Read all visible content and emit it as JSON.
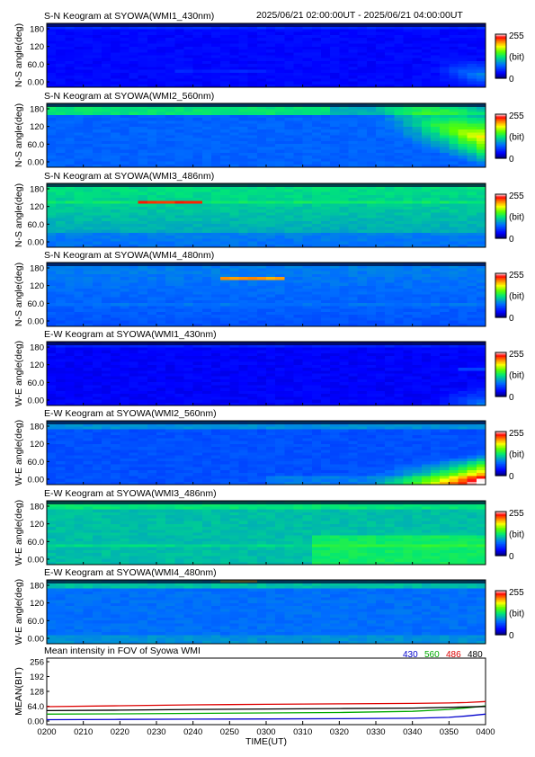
{
  "header": {
    "time_range": "2025/06/21 02:00:00UT - 2025/06/21 04:00:00UT"
  },
  "colorbar": {
    "max_label": "255",
    "unit_label": "(bit)",
    "min_label": "0"
  },
  "colors": {
    "background": "#ffffff",
    "frame": "#000000",
    "colormap": [
      "#00008b",
      "#0000ff",
      "#00a0ff",
      "#00ff80",
      "#80ff00",
      "#ffff00",
      "#ff8000",
      "#ff0000",
      "#ffffff"
    ],
    "line_430": "#0000cc",
    "line_560": "#00aa00",
    "line_486": "#dd0000",
    "line_480": "#000000"
  },
  "keograms": [
    {
      "title": "S-N Keogram at SYOWA(WMI1_430nm)",
      "ylabel": "N-S angle(deg)",
      "yticks": [
        "180",
        "120",
        "60.0",
        "0.00"
      ],
      "type": "sn430"
    },
    {
      "title": "S-N Keogram at SYOWA(WMI2_560nm)",
      "ylabel": "N-S angle(deg)",
      "yticks": [
        "180",
        "120",
        "60.0",
        "0.00"
      ],
      "type": "sn560"
    },
    {
      "title": "S-N Keogram at SYOWA(WMI3_486nm)",
      "ylabel": "N-S angle(deg)",
      "yticks": [
        "180",
        "120",
        "60.0",
        "0.00"
      ],
      "type": "sn486"
    },
    {
      "title": "S-N Keogram at SYOWA(WMI4_480nm)",
      "ylabel": "N-S angle(deg)",
      "yticks": [
        "180",
        "120",
        "60.0",
        "0.00"
      ],
      "type": "sn480"
    },
    {
      "title": "E-W Keogram at SYOWA(WMI1_430nm)",
      "ylabel": "W-E angle(deg)",
      "yticks": [
        "180",
        "120",
        "60.0",
        "0.00"
      ],
      "type": "ew430"
    },
    {
      "title": "E-W Keogram at SYOWA(WMI2_560nm)",
      "ylabel": "W-E angle(deg)",
      "yticks": [
        "180",
        "120",
        "60.0",
        "0.00"
      ],
      "type": "ew560"
    },
    {
      "title": "E-W Keogram at SYOWA(WMI3_486nm)",
      "ylabel": "W-E angle(deg)",
      "yticks": [
        "180",
        "120",
        "60.0",
        "0.00"
      ],
      "type": "ew486"
    },
    {
      "title": "E-W Keogram at SYOWA(WMI4_480nm)",
      "ylabel": "W-E angle(deg)",
      "yticks": [
        "180",
        "120",
        "60.0",
        "0.00"
      ],
      "type": "ew480"
    }
  ],
  "mean_panel": {
    "title": "Mean intensity in FOV of Syowa WMI",
    "legend": [
      "430",
      "560",
      "486",
      "480"
    ],
    "ylabel": "MEAN(BIT)",
    "yticks": [
      "256",
      "192",
      "128",
      "64.0",
      "0.00"
    ],
    "xticks": [
      "0200",
      "0210",
      "0220",
      "0230",
      "0240",
      "0250",
      "0300",
      "0310",
      "0320",
      "0330",
      "0340",
      "0350",
      "0400"
    ],
    "xlabel": "TIME(UT)"
  },
  "chart_data": {
    "type": "line",
    "title": "Mean intensity in FOV of Syowa WMI",
    "xlabel": "TIME(UT)",
    "ylabel": "MEAN(BIT)",
    "x": [
      "0200",
      "0220",
      "0240",
      "0300",
      "0320",
      "0340",
      "0350",
      "0355",
      "0400"
    ],
    "ylim": [
      0,
      256
    ],
    "series": [
      {
        "name": "430",
        "color": "#0000cc",
        "values": [
          6,
          7,
          8,
          9,
          10,
          12,
          16,
          22,
          30
        ]
      },
      {
        "name": "560",
        "color": "#00aa00",
        "values": [
          30,
          31,
          33,
          35,
          37,
          42,
          50,
          57,
          65
        ]
      },
      {
        "name": "486",
        "color": "#dd0000",
        "values": [
          62,
          66,
          70,
          72,
          74,
          76,
          78,
          80,
          84
        ]
      },
      {
        "name": "480",
        "color": "#000000",
        "values": [
          45,
          47,
          50,
          52,
          54,
          56,
          59,
          61,
          63
        ]
      }
    ]
  }
}
